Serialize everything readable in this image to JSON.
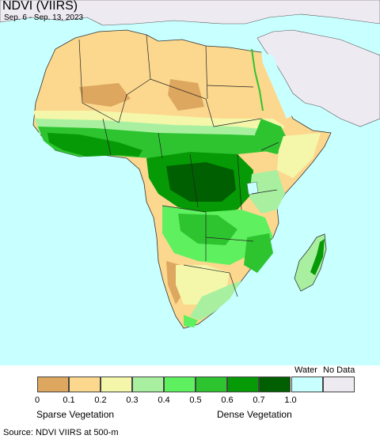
{
  "map": {
    "title": "NDVI (VIIRS)",
    "subtitle": "Sep. 6 - Sep. 13, 2023"
  },
  "legend": {
    "water_label": "Water",
    "nodata_label": "No Data",
    "bins": [
      {
        "color": "#dea75f"
      },
      {
        "color": "#fcd88e"
      },
      {
        "color": "#f4f7a9"
      },
      {
        "color": "#a8f0a0"
      },
      {
        "color": "#5ff060"
      },
      {
        "color": "#2ec430"
      },
      {
        "color": "#069a06"
      },
      {
        "color": "#005f00"
      }
    ],
    "water_color": "#c8ffff",
    "nodata_color": "#eeeaf2",
    "ticks": [
      "0",
      "0.1",
      "0.2",
      "0.3",
      "0.4",
      "0.5",
      "0.6",
      "0.7",
      "1.0"
    ],
    "left_caption": "Sparse Vegetation",
    "right_caption": "Dense Vegetation"
  },
  "source": "Source: NDVI VIIRS at 500-m",
  "colors": {
    "ocean": "#c8ffff",
    "outside": "#eeeaf2",
    "desert": "#fcd88e",
    "desert_dark": "#dea75f",
    "sparse": "#f4f7a9",
    "light_green": "#a8f0a0",
    "green": "#5ff060",
    "mid_green": "#2ec430",
    "dark_green": "#069a06",
    "forest": "#005f00"
  }
}
